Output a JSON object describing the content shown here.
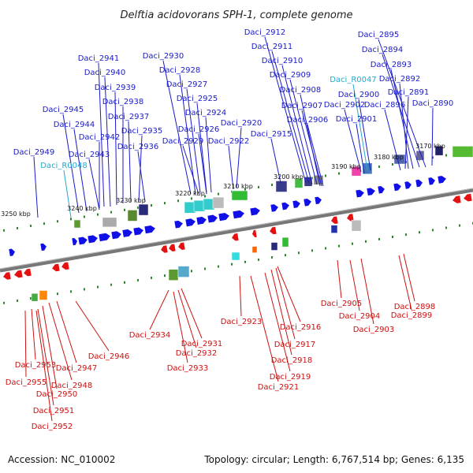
{
  "title": "Delftia acidovorans SPH-1, complete genome",
  "accession": "Accession: NC_010002",
  "summary": "Topology: circular; Length: 6,767,514 bp; Genes: 6,135",
  "colors": {
    "top_label": "#1a1acc",
    "rna_label": "#22aacc",
    "bottom_label": "#cc1111",
    "forward_gene": "#1010e6",
    "reverse_gene": "#e61010",
    "backbone": "#777777",
    "tick": "#2a8a2a"
  },
  "scale": [
    "3170 kbp",
    "3180 kbp",
    "3190 kbp",
    "3200 kbp",
    "3210 kbp",
    "3220 kbp",
    "3230 kbp",
    "3240 kbp",
    "3250 kbp"
  ],
  "top_labels": [
    {
      "text": "Daci_2912",
      "kind": "gene"
    },
    {
      "text": "Daci_2895",
      "kind": "gene"
    },
    {
      "text": "Daci_2911",
      "kind": "gene"
    },
    {
      "text": "Daci_2894",
      "kind": "gene"
    },
    {
      "text": "Daci_2941",
      "kind": "gene"
    },
    {
      "text": "Daci_2930",
      "kind": "gene"
    },
    {
      "text": "Daci_2910",
      "kind": "gene"
    },
    {
      "text": "Daci_2893",
      "kind": "gene"
    },
    {
      "text": "Daci_2940",
      "kind": "gene"
    },
    {
      "text": "Daci_2928",
      "kind": "gene"
    },
    {
      "text": "Daci_2909",
      "kind": "gene"
    },
    {
      "text": "Daci_R0047",
      "kind": "rna"
    },
    {
      "text": "Daci_2892",
      "kind": "gene"
    },
    {
      "text": "Daci_2939",
      "kind": "gene"
    },
    {
      "text": "Daci_2927",
      "kind": "gene"
    },
    {
      "text": "Daci_2908",
      "kind": "gene"
    },
    {
      "text": "Daci_2900",
      "kind": "gene"
    },
    {
      "text": "Daci_2891",
      "kind": "gene"
    },
    {
      "text": "Daci_2938",
      "kind": "gene"
    },
    {
      "text": "Daci_2925",
      "kind": "gene"
    },
    {
      "text": "Daci_2907",
      "kind": "gene"
    },
    {
      "text": "Daci_2902",
      "kind": "gene"
    },
    {
      "text": "Daci_2896",
      "kind": "gene"
    },
    {
      "text": "Daci_2890",
      "kind": "gene"
    },
    {
      "text": "Daci_2945",
      "kind": "gene"
    },
    {
      "text": "Daci_2937",
      "kind": "gene"
    },
    {
      "text": "Daci_2924",
      "kind": "gene"
    },
    {
      "text": "Daci_2906",
      "kind": "gene"
    },
    {
      "text": "Daci_2901",
      "kind": "gene"
    },
    {
      "text": "Daci_2944",
      "kind": "gene"
    },
    {
      "text": "Daci_2920",
      "kind": "gene"
    },
    {
      "text": "Daci_2935",
      "kind": "gene"
    },
    {
      "text": "Daci_2926",
      "kind": "gene"
    },
    {
      "text": "Daci_2915",
      "kind": "gene"
    },
    {
      "text": "Daci_2942",
      "kind": "gene"
    },
    {
      "text": "Daci_2929",
      "kind": "gene"
    },
    {
      "text": "Daci_2922",
      "kind": "gene"
    },
    {
      "text": "Daci_2936",
      "kind": "gene"
    },
    {
      "text": "Daci_2943",
      "kind": "gene"
    },
    {
      "text": "Daci_2949",
      "kind": "gene"
    },
    {
      "text": "Daci_R0048",
      "kind": "rna"
    }
  ],
  "bottom_labels": [
    "Daci_2905",
    "Daci_2898",
    "Daci_2904",
    "Daci_2899",
    "Daci_2923",
    "Daci_2903",
    "Daci_2916",
    "Daci_2934",
    "Daci_2931",
    "Daci_2917",
    "Daci_2946",
    "Daci_2932",
    "Daci_2918",
    "Daci_2953",
    "Daci_2947",
    "Daci_2933",
    "Daci_2919",
    "Daci_2955",
    "Daci_2948",
    "Daci_2921",
    "Daci_2950",
    "Daci_2951",
    "Daci_2952"
  ]
}
